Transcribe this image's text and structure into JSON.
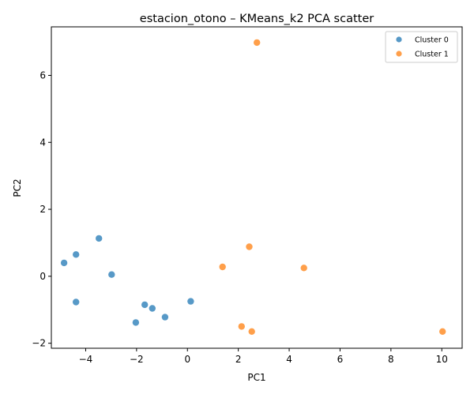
{
  "chart_data": {
    "type": "scatter",
    "title": "estacion_otono – KMeans_k2 PCA scatter",
    "xlabel": "PC1",
    "ylabel": "PC2",
    "xlim": [
      -5.35,
      10.8
    ],
    "ylim": [
      -2.15,
      7.45
    ],
    "x_ticks": [
      -4,
      -2,
      0,
      2,
      4,
      6,
      8,
      10
    ],
    "y_ticks": [
      -2,
      0,
      2,
      4,
      6
    ],
    "grid": false,
    "legend_position": "top-right",
    "series": [
      {
        "name": "Cluster 0",
        "color": "#1f77b4",
        "points": [
          {
            "x": -4.85,
            "y": 0.4
          },
          {
            "x": -4.38,
            "y": 0.65
          },
          {
            "x": -3.48,
            "y": 1.13
          },
          {
            "x": -2.98,
            "y": 0.05
          },
          {
            "x": -4.38,
            "y": -0.77
          },
          {
            "x": -1.68,
            "y": -0.85
          },
          {
            "x": -1.38,
            "y": -0.96
          },
          {
            "x": -0.88,
            "y": -1.22
          },
          {
            "x": -2.03,
            "y": -1.38
          },
          {
            "x": 0.13,
            "y": -0.75
          }
        ]
      },
      {
        "name": "Cluster 1",
        "color": "#ff7f0e",
        "points": [
          {
            "x": 2.73,
            "y": 6.98
          },
          {
            "x": 2.43,
            "y": 0.88
          },
          {
            "x": 1.38,
            "y": 0.28
          },
          {
            "x": 4.58,
            "y": 0.25
          },
          {
            "x": 2.13,
            "y": -1.5
          },
          {
            "x": 2.53,
            "y": -1.65
          },
          {
            "x": 10.03,
            "y": -1.65
          }
        ]
      }
    ]
  }
}
